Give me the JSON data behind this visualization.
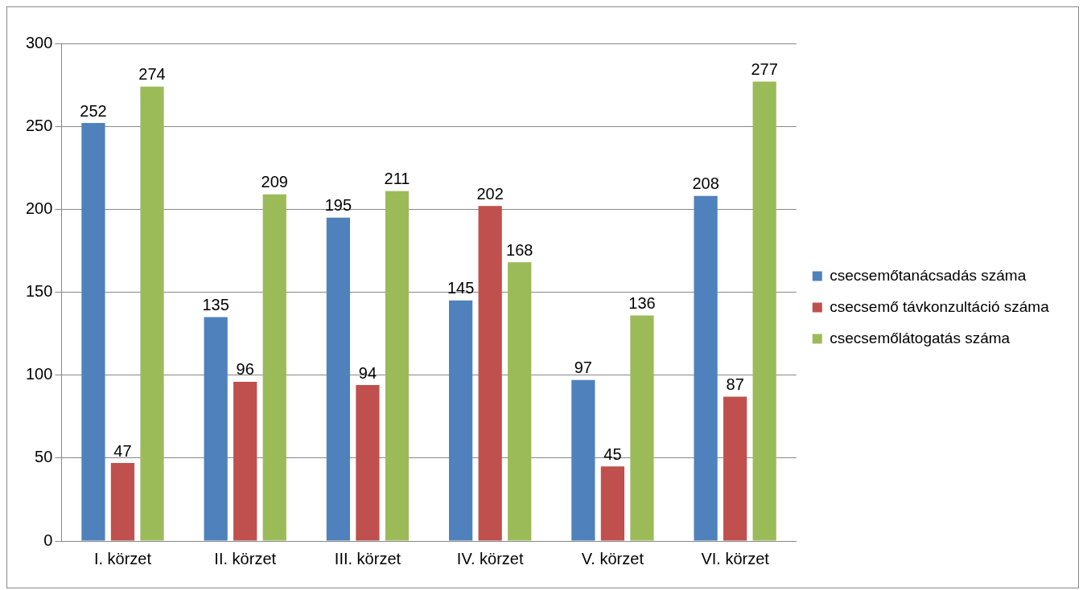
{
  "chart_data": {
    "type": "bar",
    "categories": [
      "I. körzet",
      "II. körzet",
      "III. körzet",
      "IV. körzet",
      "V. körzet",
      "VI. körzet"
    ],
    "series": [
      {
        "name": "csecsemőtanácsadás száma",
        "color": "#4f81bd",
        "values": [
          252,
          135,
          195,
          145,
          97,
          208
        ]
      },
      {
        "name": "csecsemő távkonzultáció száma",
        "color": "#c0504d",
        "values": [
          47,
          96,
          94,
          202,
          45,
          87
        ]
      },
      {
        "name": "csecsemőlátogatás száma",
        "color": "#9bbb59",
        "values": [
          274,
          209,
          211,
          168,
          136,
          277
        ]
      }
    ],
    "ylim": [
      0,
      300
    ],
    "yticks": [
      0,
      50,
      100,
      150,
      200,
      250,
      300
    ],
    "grid": "y",
    "legend": "right",
    "data_labels": true
  }
}
